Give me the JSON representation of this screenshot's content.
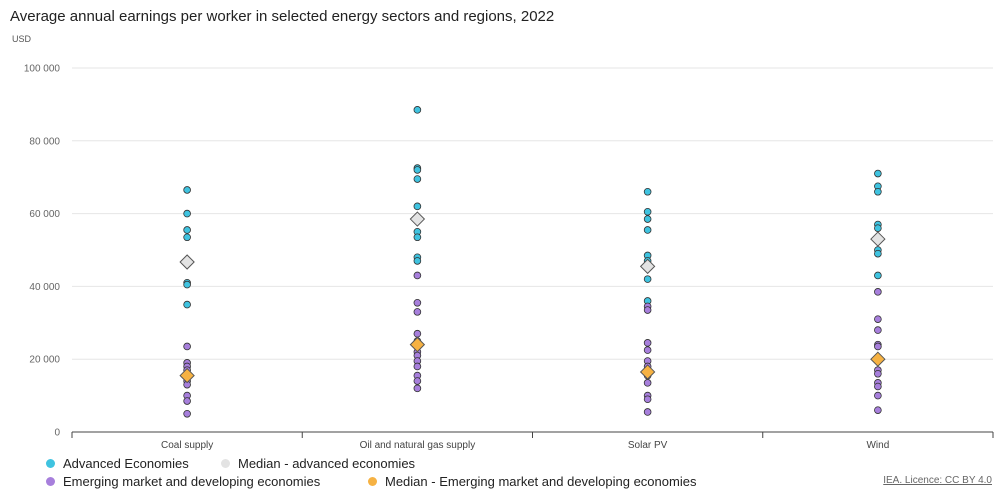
{
  "title": "Average annual earnings per worker in selected energy sectors and regions, 2022",
  "credit": "IEA. Licence: CC BY 4.0",
  "colors": {
    "advanced": "#3fc3e0",
    "median_advanced": "#e3e3e3",
    "emerging": "#a77fdc",
    "median_emerging": "#f6b243"
  },
  "chart_data": {
    "type": "scatter",
    "ylabel": "USD",
    "ylim": [
      0,
      100000
    ],
    "yticks": [
      0,
      20000,
      40000,
      60000,
      80000,
      100000
    ],
    "ytick_labels": [
      "0",
      "20 000",
      "40 000",
      "60 000",
      "80 000",
      "100 000"
    ],
    "categories": [
      "Coal supply",
      "Oil and natural gas supply",
      "Solar PV",
      "Wind"
    ],
    "grid": true,
    "legend_position": "bottom-left",
    "series": [
      {
        "name": "Advanced Economies",
        "kind": "point",
        "color": "#3fc3e0",
        "values": [
          [
            66500,
            60000,
            55500,
            53500,
            41000,
            40500,
            35000
          ],
          [
            88500,
            72500,
            72000,
            69500,
            62000,
            55000,
            53500,
            48000,
            47000
          ],
          [
            66000,
            60500,
            58500,
            55500,
            48500,
            47000,
            42000,
            36000
          ],
          [
            71000,
            67500,
            66000,
            57000,
            56000,
            50000,
            49000,
            43000
          ]
        ]
      },
      {
        "name": "Median - advanced economies",
        "kind": "diamond",
        "color": "#e3e3e3",
        "values": [
          46700,
          58500,
          45500,
          53000
        ]
      },
      {
        "name": "Emerging market and developing economies",
        "kind": "point",
        "color": "#a77fdc",
        "values": [
          [
            23500,
            19000,
            18000,
            17000,
            14000,
            13000,
            10000,
            8500,
            5000
          ],
          [
            43000,
            35500,
            33000,
            27000,
            25000,
            22000,
            21000,
            19500,
            18000,
            15500,
            14000,
            12000
          ],
          [
            34500,
            33500,
            24500,
            22500,
            19500,
            18000,
            15500,
            13500,
            10000,
            9000,
            5500
          ],
          [
            38500,
            31000,
            28000,
            24000,
            23500,
            17000,
            16000,
            13500,
            12500,
            10000,
            6000
          ]
        ]
      },
      {
        "name": "Median - Emerging market and developing economies",
        "kind": "diamond",
        "color": "#f6b243",
        "values": [
          15500,
          24000,
          16500,
          20000
        ]
      }
    ]
  }
}
